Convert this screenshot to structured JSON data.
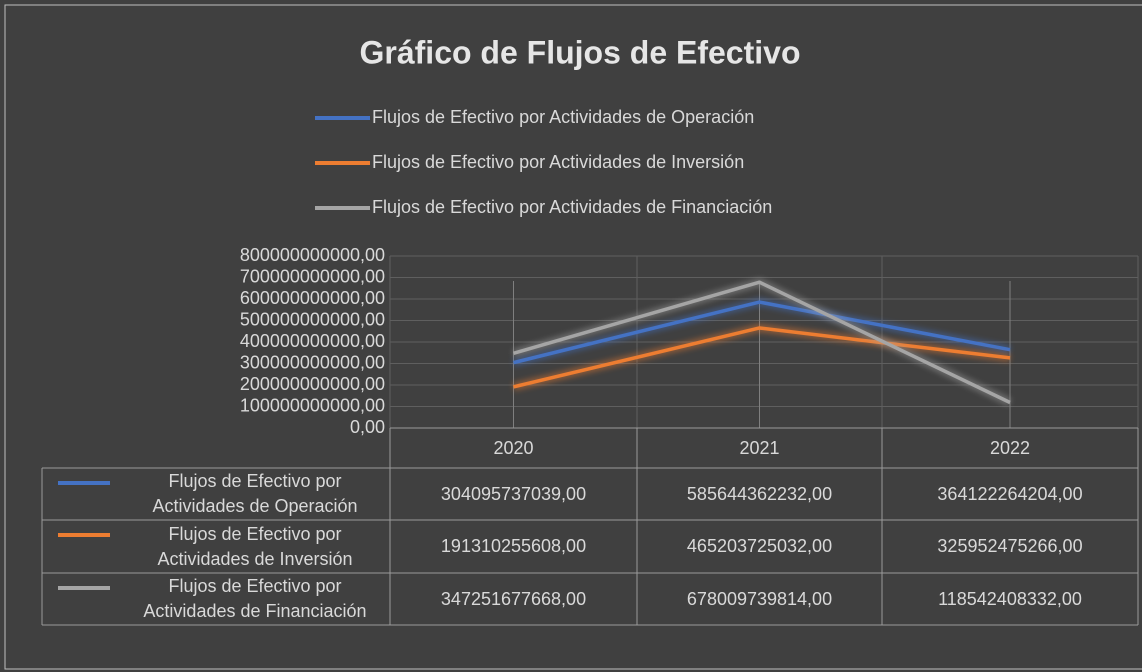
{
  "chart_data": {
    "type": "line",
    "title": "Gráfico de Flujos de Efectivo",
    "categories": [
      "2020",
      "2021",
      "2022"
    ],
    "series": [
      {
        "name": "Flujos de Efectivo por Actividades de Operación",
        "color": "#4472c4",
        "values": [
          304095737039,
          585644362232,
          364122264204
        ],
        "value_labels": [
          "304095737039,00",
          "585644362232,00",
          "364122264204,00"
        ]
      },
      {
        "name": "Flujos de Efectivo por Actividades de Inversión",
        "color": "#ed7d31",
        "values": [
          191310255608,
          465203725032,
          325952475266
        ],
        "value_labels": [
          "191310255608,00",
          "465203725032,00",
          "325952475266,00"
        ]
      },
      {
        "name": "Flujos de Efectivo por Actividades de Financiación",
        "color": "#a5a5a5",
        "values": [
          347251677668,
          678009739814,
          118542408332
        ],
        "value_labels": [
          "347251677668,00",
          "678009739814,00",
          "118542408332,00"
        ]
      }
    ],
    "ylim": [
      0,
      800000000000
    ],
    "yticks": [
      {
        "value": 0,
        "label": "0,00"
      },
      {
        "value": 100000000000,
        "label": "100000000000,00"
      },
      {
        "value": 200000000000,
        "label": "200000000000,00"
      },
      {
        "value": 300000000000,
        "label": "300000000000,00"
      },
      {
        "value": 400000000000,
        "label": "400000000000,00"
      },
      {
        "value": 500000000000,
        "label": "500000000000,00"
      },
      {
        "value": 600000000000,
        "label": "600000000000,00"
      },
      {
        "value": 700000000000,
        "label": "700000000000,00"
      },
      {
        "value": 800000000000,
        "label": "800000000000,00"
      }
    ],
    "grid": true,
    "legend": "top",
    "data_table": true
  }
}
